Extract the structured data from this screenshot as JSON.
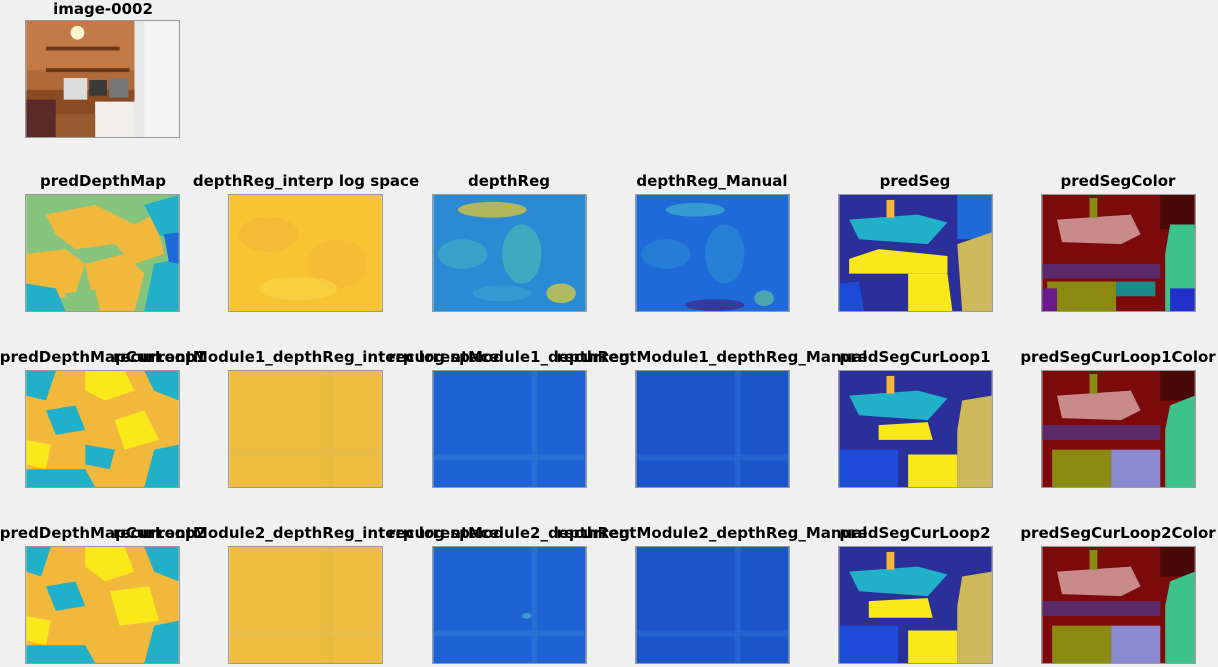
{
  "figure": {
    "top_title": "image-0002",
    "rows": [
      {
        "titles": [
          "predDepthMap",
          "depthReg_interp log space",
          "depthReg",
          "depthReg_Manual",
          "predSeg",
          "predSegColor"
        ]
      },
      {
        "titles": [
          "predDepthMapCurLoop1",
          "recurrentModule1_depthReg_interp log space",
          "recurrentModule1_depthReg",
          "recurrentModule1_depthReg_Manual",
          "predSegCurLoop1",
          "predSegCurLoop1Color"
        ]
      },
      {
        "titles": [
          "predDepthMapCurLoop2",
          "recurrentModule2_depthReg_interp log space",
          "recurrentModule2_depthReg",
          "recurrentModule2_depthReg_Manual",
          "predSegCurLoop2",
          "predSegCurLoop2Color"
        ]
      }
    ]
  },
  "colors": {
    "background": "#f0f0f0",
    "parula_yellow": "#f9e81a",
    "parula_orange": "#f2b83c",
    "parula_teal": "#22b0c8",
    "parula_green": "#86c47e",
    "parula_blue": "#1e6ad8",
    "parula_navy": "#3a2f8f",
    "seg_maroon": "#7c0a0a",
    "seg_pink": "#c98a8a",
    "seg_olive": "#8a8a10",
    "seg_green": "#3cc28a"
  }
}
